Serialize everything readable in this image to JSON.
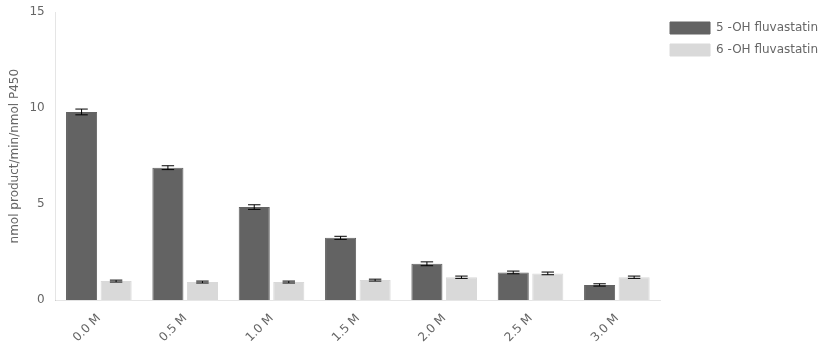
{
  "chart_data": {
    "type": "bar",
    "categories": [
      "0.0 M",
      "0.5 M",
      "1.0 M",
      "1.5 M",
      "2.0 M",
      "2.5 M",
      "3.0 M"
    ],
    "series": [
      {
        "name": "5 -OH fluvastatin",
        "color": "#636363",
        "values": [
          9.8,
          6.9,
          4.85,
          3.25,
          1.9,
          1.45,
          0.8
        ],
        "errors": [
          0.15,
          0.1,
          0.12,
          0.08,
          0.1,
          0.07,
          0.06
        ]
      },
      {
        "name": "6 -OH fluvastatin",
        "color": "#d9d9d9",
        "values": [
          1.0,
          0.95,
          0.95,
          1.05,
          1.2,
          1.4,
          1.2
        ],
        "errors": [
          0.05,
          0.05,
          0.05,
          0.05,
          0.06,
          0.07,
          0.06
        ]
      }
    ],
    "ylabel": "nmol product/min/nmol P450",
    "ylim": [
      0,
      15
    ],
    "yticks": [
      0,
      5,
      10,
      15
    ],
    "grid": false,
    "legend": "right"
  }
}
